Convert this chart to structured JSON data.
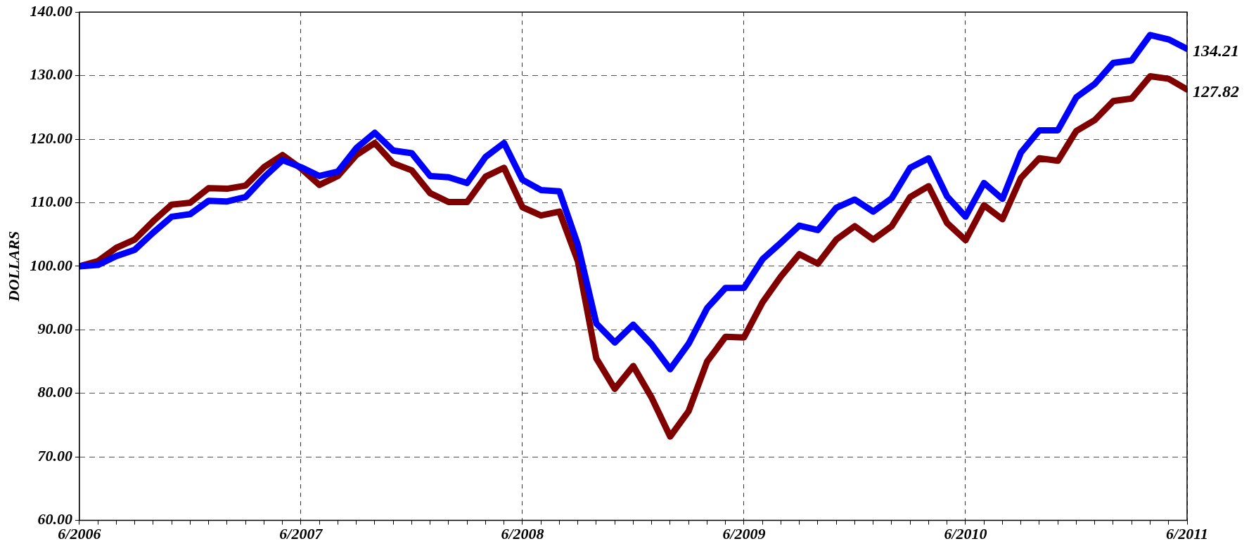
{
  "chart_data": {
    "type": "line",
    "ylabel": "DOLLARS",
    "x": [
      "2006-06",
      "2006-07",
      "2006-08",
      "2006-09",
      "2006-10",
      "2006-11",
      "2006-12",
      "2007-01",
      "2007-02",
      "2007-03",
      "2007-04",
      "2007-05",
      "2007-06",
      "2007-07",
      "2007-08",
      "2007-09",
      "2007-10",
      "2007-11",
      "2007-12",
      "2008-01",
      "2008-02",
      "2008-03",
      "2008-04",
      "2008-05",
      "2008-06",
      "2008-07",
      "2008-08",
      "2008-09",
      "2008-10",
      "2008-11",
      "2008-12",
      "2009-01",
      "2009-02",
      "2009-03",
      "2009-04",
      "2009-05",
      "2009-06",
      "2009-07",
      "2009-08",
      "2009-09",
      "2009-10",
      "2009-11",
      "2009-12",
      "2010-01",
      "2010-02",
      "2010-03",
      "2010-04",
      "2010-05",
      "2010-06",
      "2010-07",
      "2010-08",
      "2010-09",
      "2010-10",
      "2010-11",
      "2010-12",
      "2011-01",
      "2011-02",
      "2011-03",
      "2011-04",
      "2011-05",
      "2011-06"
    ],
    "series": [
      {
        "color": "#0000ff",
        "values": [
          100.0,
          100.2,
          101.6,
          102.6,
          105.3,
          107.8,
          108.2,
          110.3,
          110.2,
          110.9,
          114.0,
          116.7,
          115.6,
          114.2,
          114.9,
          118.6,
          121.0,
          118.2,
          117.8,
          114.2,
          114.0,
          113.1,
          117.2,
          119.4,
          113.6,
          112.0,
          111.8,
          103.4,
          91.0,
          88.0,
          90.8,
          87.7,
          83.8,
          87.8,
          93.4,
          96.6,
          96.6,
          101.1,
          103.7,
          106.4,
          105.7,
          109.2,
          110.5,
          108.6,
          110.7,
          115.5,
          117.0,
          111.0,
          107.8,
          113.1,
          110.6,
          117.9,
          121.4,
          121.4,
          126.6,
          128.7,
          132.0,
          132.4,
          136.4,
          135.7,
          134.21
        ]
      },
      {
        "color": "#800000",
        "values": [
          100.0,
          100.8,
          102.9,
          104.2,
          107.1,
          109.7,
          110.0,
          112.3,
          112.2,
          112.7,
          115.6,
          117.5,
          115.4,
          112.8,
          114.2,
          117.5,
          119.4,
          116.2,
          115.1,
          111.5,
          110.1,
          110.1,
          114.1,
          115.5,
          109.3,
          108.0,
          108.6,
          100.8,
          85.5,
          80.7,
          84.3,
          79.3,
          73.2,
          77.2,
          85.0,
          88.9,
          88.8,
          94.3,
          98.4,
          101.9,
          100.4,
          104.2,
          106.3,
          104.2,
          106.3,
          110.9,
          112.6,
          106.8,
          104.1,
          109.6,
          107.4,
          113.9,
          117.0,
          116.6,
          121.3,
          123.0,
          126.0,
          126.4,
          129.9,
          129.5,
          127.82
        ]
      }
    ],
    "annotations": [
      {
        "text": "134.21",
        "x": "2011-06",
        "y": 134.21
      },
      {
        "text": "127.82",
        "x": "2011-06",
        "y": 127.82
      }
    ],
    "xlim": [
      "2006-06",
      "2011-06"
    ],
    "xticks": [
      {
        "value": "2006-06",
        "label": "6/2006"
      },
      {
        "value": "2006-07",
        "label": null
      },
      {
        "value": "2006-08",
        "label": null
      },
      {
        "value": "2006-09",
        "label": null
      },
      {
        "value": "2006-10",
        "label": null
      },
      {
        "value": "2006-11",
        "label": null
      },
      {
        "value": "2006-12",
        "label": null
      },
      {
        "value": "2007-01",
        "label": null
      },
      {
        "value": "2007-02",
        "label": null
      },
      {
        "value": "2007-03",
        "label": null
      },
      {
        "value": "2007-04",
        "label": null
      },
      {
        "value": "2007-05",
        "label": null
      },
      {
        "value": "2007-06",
        "label": "6/2007"
      },
      {
        "value": "2007-07",
        "label": null
      },
      {
        "value": "2007-08",
        "label": null
      },
      {
        "value": "2007-09",
        "label": null
      },
      {
        "value": "2007-10",
        "label": null
      },
      {
        "value": "2007-11",
        "label": null
      },
      {
        "value": "2007-12",
        "label": null
      },
      {
        "value": "2008-01",
        "label": null
      },
      {
        "value": "2008-02",
        "label": null
      },
      {
        "value": "2008-03",
        "label": null
      },
      {
        "value": "2008-04",
        "label": null
      },
      {
        "value": "2008-05",
        "label": null
      },
      {
        "value": "2008-06",
        "label": "6/2008"
      },
      {
        "value": "2008-07",
        "label": null
      },
      {
        "value": "2008-08",
        "label": null
      },
      {
        "value": "2008-09",
        "label": null
      },
      {
        "value": "2008-10",
        "label": null
      },
      {
        "value": "2008-11",
        "label": null
      },
      {
        "value": "2008-12",
        "label": null
      },
      {
        "value": "2009-01",
        "label": null
      },
      {
        "value": "2009-02",
        "label": null
      },
      {
        "value": "2009-03",
        "label": null
      },
      {
        "value": "2009-04",
        "label": null
      },
      {
        "value": "2009-05",
        "label": null
      },
      {
        "value": "2009-06",
        "label": "6/2009"
      },
      {
        "value": "2009-07",
        "label": null
      },
      {
        "value": "2009-08",
        "label": null
      },
      {
        "value": "2009-09",
        "label": null
      },
      {
        "value": "2009-10",
        "label": null
      },
      {
        "value": "2009-11",
        "label": null
      },
      {
        "value": "2009-12",
        "label": null
      },
      {
        "value": "2010-01",
        "label": null
      },
      {
        "value": "2010-02",
        "label": null
      },
      {
        "value": "2010-03",
        "label": null
      },
      {
        "value": "2010-04",
        "label": null
      },
      {
        "value": "2010-05",
        "label": null
      },
      {
        "value": "2010-06",
        "label": "6/2010"
      },
      {
        "value": "2010-07",
        "label": null
      },
      {
        "value": "2010-08",
        "label": null
      },
      {
        "value": "2010-09",
        "label": null
      },
      {
        "value": "2010-10",
        "label": null
      },
      {
        "value": "2010-11",
        "label": null
      },
      {
        "value": "2010-12",
        "label": null
      },
      {
        "value": "2011-01",
        "label": null
      },
      {
        "value": "2011-02",
        "label": null
      },
      {
        "value": "2011-03",
        "label": null
      },
      {
        "value": "2011-04",
        "label": null
      },
      {
        "value": "2011-05",
        "label": null
      },
      {
        "value": "2011-06",
        "label": "6/2011"
      }
    ],
    "ylim": [
      60,
      140
    ],
    "yticks": [
      {
        "value": 60,
        "label": "60.00"
      },
      {
        "value": 70,
        "label": "70.00"
      },
      {
        "value": 80,
        "label": "80.00"
      },
      {
        "value": 90,
        "label": "90.00"
      },
      {
        "value": 100,
        "label": "100.00"
      },
      {
        "value": 110,
        "label": "110.00"
      },
      {
        "value": 120,
        "label": "120.00"
      },
      {
        "value": 130,
        "label": "130.00"
      },
      {
        "value": 140,
        "label": "140.00"
      }
    ],
    "grid": true,
    "legend": false,
    "marker": "none",
    "line_style": "solid"
  }
}
